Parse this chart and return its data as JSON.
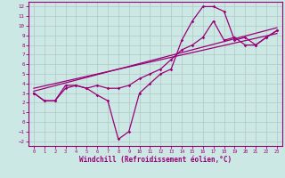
{
  "xlabel": "Windchill (Refroidissement éolien,°C)",
  "bg_color": "#cce8e4",
  "line_color": "#990077",
  "grid_color": "#b0c8c4",
  "xlim": [
    -0.5,
    23.5
  ],
  "ylim": [
    -2.5,
    12.5
  ],
  "xticks": [
    0,
    1,
    2,
    3,
    4,
    5,
    6,
    7,
    8,
    9,
    10,
    11,
    12,
    13,
    14,
    15,
    16,
    17,
    18,
    19,
    20,
    21,
    22,
    23
  ],
  "yticks": [
    -2,
    -1,
    0,
    1,
    2,
    3,
    4,
    5,
    6,
    7,
    8,
    9,
    10,
    11,
    12
  ],
  "line1_x": [
    0,
    1,
    2,
    3,
    4,
    5,
    6,
    7,
    8,
    9,
    10,
    11,
    12,
    13,
    14,
    15,
    16,
    17,
    18,
    19,
    20,
    21,
    22,
    23
  ],
  "line1_y": [
    3.0,
    2.2,
    2.2,
    3.8,
    3.8,
    3.5,
    2.8,
    2.2,
    -1.8,
    -1.0,
    3.0,
    4.0,
    5.0,
    5.5,
    8.5,
    10.5,
    12.0,
    12.0,
    11.5,
    8.5,
    8.8,
    8.0,
    8.8,
    9.5
  ],
  "line2_x": [
    0,
    1,
    2,
    3,
    4,
    5,
    6,
    7,
    8,
    9,
    10,
    11,
    12,
    13,
    14,
    15,
    16,
    17,
    18,
    19,
    20,
    21,
    22,
    23
  ],
  "line2_y": [
    3.0,
    2.2,
    2.2,
    3.5,
    3.8,
    3.5,
    3.8,
    3.5,
    3.5,
    3.8,
    4.5,
    5.0,
    5.5,
    6.5,
    7.5,
    8.0,
    8.8,
    10.5,
    8.5,
    8.8,
    8.0,
    8.0,
    8.8,
    9.5
  ],
  "line3_x": [
    0,
    23
  ],
  "line3_y": [
    3.2,
    9.8
  ],
  "line4_x": [
    0,
    23
  ],
  "line4_y": [
    3.5,
    9.2
  ]
}
